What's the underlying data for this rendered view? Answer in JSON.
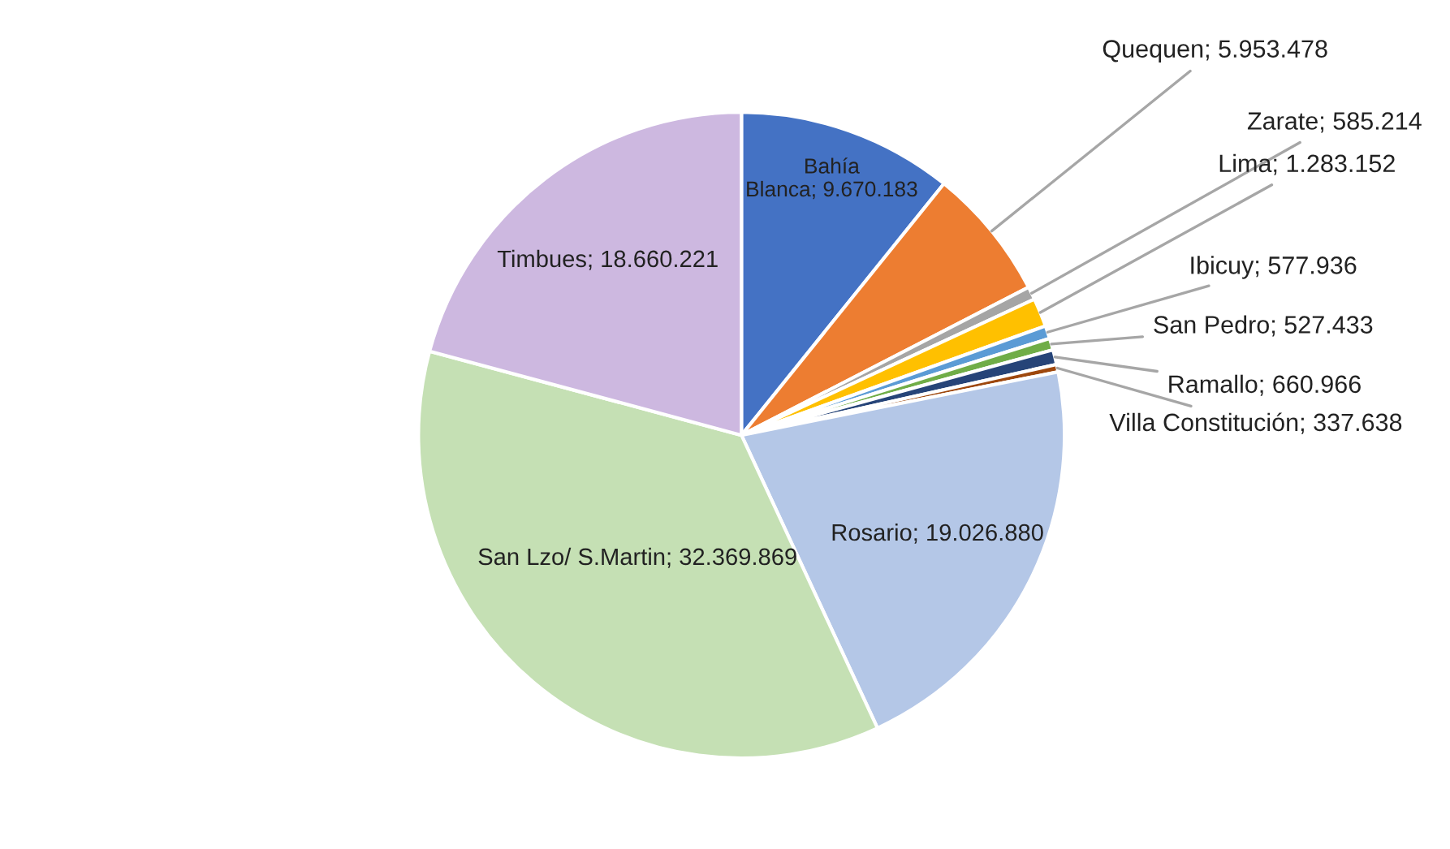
{
  "chart_data": {
    "type": "pie",
    "categories": [
      "Bahía Blanca",
      "Quequen",
      "Zarate",
      "Lima",
      "Ibicuy",
      "San Pedro",
      "Ramallo",
      "Villa Constitución",
      "Rosario",
      "San Lzo/ S.Martin",
      "Timbues"
    ],
    "values": [
      9670183,
      5953478,
      585214,
      1283152,
      577936,
      527433,
      660966,
      337638,
      19026880,
      32369869,
      18660221
    ],
    "value_labels": [
      "9.670.183",
      "5.953.478",
      "585.214",
      "1.283.152",
      "577.936",
      "527.433",
      "660.966",
      "337.638",
      "19.026.880",
      "32.369.869",
      "18.660.221"
    ],
    "colors": [
      "#4472c4",
      "#ed7d31",
      "#a5a5a5",
      "#ffc000",
      "#5b9bd5",
      "#70ad47",
      "#264478",
      "#9e480e",
      "#b4c7e7",
      "#c5e0b4",
      "#cdb8e0"
    ]
  }
}
